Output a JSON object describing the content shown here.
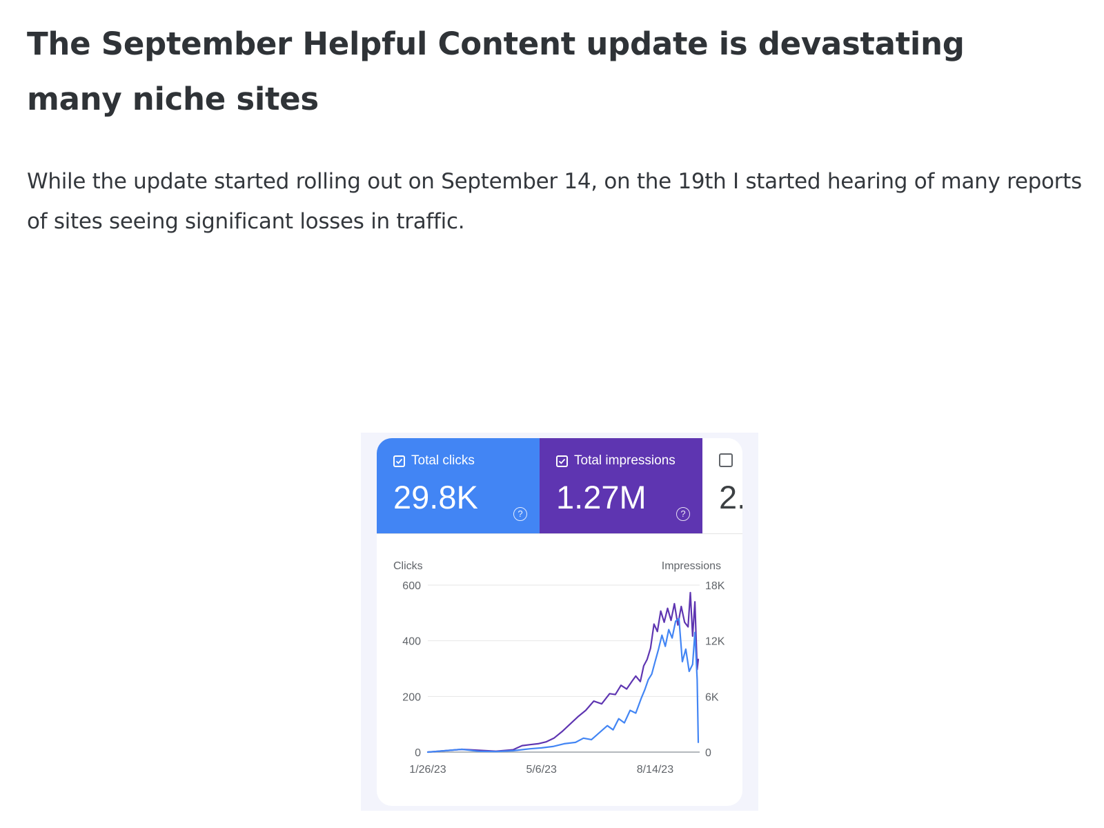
{
  "article": {
    "title": "The September Helpful Content update is devastating many niche sites",
    "body": "While the update started rolling out on September 14, on the 19th I started hearing of many reports of sites seeing significant losses in traffic."
  },
  "summary": {
    "clicks": {
      "label": "Total clicks",
      "value": "29.8K",
      "color": "#4285f4"
    },
    "impressions": {
      "label": "Total impressions",
      "value": "1.27M",
      "color": "#5e35b1"
    },
    "third": {
      "value": "2."
    }
  },
  "chart_data": {
    "type": "line",
    "xlabel": "",
    "y_left_label": "Clicks",
    "y_right_label": "Impressions",
    "y_left_ticks": [
      "600",
      "400",
      "200",
      "0"
    ],
    "y_right_ticks": [
      "18K",
      "12K",
      "6K",
      "0"
    ],
    "ylim_left": [
      0,
      600
    ],
    "ylim_right": [
      0,
      18000
    ],
    "x_ticks": [
      {
        "label": "1/26/23",
        "x": "2023-01-26"
      },
      {
        "label": "5/6/23",
        "x": "2023-05-06"
      },
      {
        "label": "8/14/23",
        "x": "2023-08-14"
      }
    ],
    "xlim": [
      "2023-01-26",
      "2023-09-21"
    ],
    "grid": true,
    "series": [
      {
        "name": "Impressions",
        "axis": "right",
        "color": "#5e35b1",
        "x": [
          "2023-01-26",
          "2023-02-10",
          "2023-02-25",
          "2023-03-12",
          "2023-03-27",
          "2023-04-11",
          "2023-04-19",
          "2023-04-26",
          "2023-05-03",
          "2023-05-10",
          "2023-05-17",
          "2023-05-24",
          "2023-05-31",
          "2023-06-07",
          "2023-06-14",
          "2023-06-21",
          "2023-06-28",
          "2023-07-05",
          "2023-07-10",
          "2023-07-15",
          "2023-07-20",
          "2023-07-25",
          "2023-07-28",
          "2023-08-01",
          "2023-08-04",
          "2023-08-07",
          "2023-08-10",
          "2023-08-13",
          "2023-08-16",
          "2023-08-19",
          "2023-08-22",
          "2023-08-25",
          "2023-08-28",
          "2023-08-31",
          "2023-09-03",
          "2023-09-06",
          "2023-09-09",
          "2023-09-12",
          "2023-09-14",
          "2023-09-16",
          "2023-09-18",
          "2023-09-20",
          "2023-09-21"
        ],
        "y": [
          0,
          150,
          300,
          200,
          100,
          250,
          700,
          800,
          900,
          1100,
          1500,
          2200,
          3000,
          3800,
          4500,
          5500,
          5200,
          6300,
          6200,
          7200,
          6800,
          7700,
          8200,
          7600,
          9300,
          10000,
          11200,
          13800,
          13000,
          15200,
          14000,
          15500,
          14200,
          16000,
          13700,
          15700,
          14000,
          13500,
          17200,
          12500,
          16200,
          8900,
          10000
        ]
      },
      {
        "name": "Clicks",
        "axis": "left",
        "color": "#4285f4",
        "x": [
          "2023-01-26",
          "2023-02-10",
          "2023-02-25",
          "2023-03-12",
          "2023-03-27",
          "2023-04-11",
          "2023-04-26",
          "2023-05-06",
          "2023-05-16",
          "2023-05-26",
          "2023-06-05",
          "2023-06-12",
          "2023-06-19",
          "2023-06-26",
          "2023-07-03",
          "2023-07-08",
          "2023-07-13",
          "2023-07-18",
          "2023-07-23",
          "2023-07-28",
          "2023-08-02",
          "2023-08-05",
          "2023-08-08",
          "2023-08-11",
          "2023-08-14",
          "2023-08-17",
          "2023-08-20",
          "2023-08-23",
          "2023-08-26",
          "2023-08-29",
          "2023-09-01",
          "2023-09-04",
          "2023-09-07",
          "2023-09-10",
          "2023-09-13",
          "2023-09-16",
          "2023-09-18",
          "2023-09-20",
          "2023-09-21"
        ],
        "y": [
          0,
          5,
          10,
          3,
          2,
          5,
          12,
          15,
          20,
          30,
          35,
          50,
          45,
          70,
          95,
          80,
          120,
          105,
          150,
          140,
          195,
          225,
          260,
          280,
          325,
          370,
          420,
          380,
          440,
          410,
          470,
          480,
          325,
          370,
          290,
          315,
          430,
          260,
          35
        ]
      }
    ]
  }
}
